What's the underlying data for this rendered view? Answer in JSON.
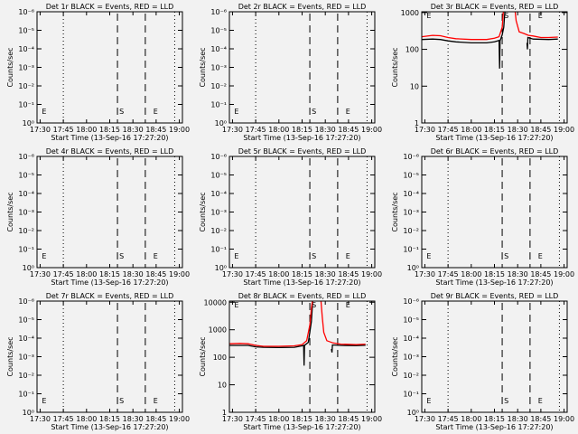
{
  "chart_data": {
    "type": "line",
    "xlabel": "Start Time (13-Sep-16 17:27:20)",
    "ylabel": "Counts/sec",
    "x_tick_labels": [
      "17:30",
      "17:45",
      "18:00",
      "18:15",
      "18:30",
      "18:45",
      "19:00"
    ],
    "x_unit": "minutes after 17:30",
    "xlim": [
      -2,
      92
    ],
    "dotted_lines": [
      15,
      87
    ],
    "dashed_lines": [
      50,
      68
    ],
    "markers": [
      {
        "label": "E",
        "x": 0
      },
      {
        "label": "S",
        "x": 50
      },
      {
        "label": "E",
        "x": 72
      }
    ],
    "empty_ytick_labels": [
      "10⁰",
      "10⁻¹",
      "10⁻²",
      "10⁻³",
      "10⁻⁴",
      "10⁻⁵",
      "10⁻⁶"
    ],
    "legend": "BLACK = Events, RED = LLD",
    "panels": [
      {
        "title": "Det 1r BLACK = Events, RED = LLD",
        "series": []
      },
      {
        "title": "Det 2r BLACK = Events, RED = LLD",
        "series": []
      },
      {
        "title": "Det 3r BLACK = Events, RED = LLD",
        "ylim": [
          1,
          1050
        ],
        "yticks": [
          1,
          10,
          100,
          1000
        ],
        "ytick_labels": [
          "1",
          "10",
          "100",
          "1000"
        ],
        "series": [
          {
            "name": "Events",
            "color": "#000000",
            "points": [
              [
                -2,
                185
              ],
              [
                5,
                190
              ],
              [
                10,
                185
              ],
              [
                15,
                170
              ],
              [
                20,
                160
              ],
              [
                30,
                150
              ],
              [
                40,
                150
              ],
              [
                45,
                160
              ],
              [
                48,
                175
              ],
              [
                48.3,
                30
              ],
              [
                48.6,
                170
              ],
              [
                50,
                250
              ],
              [
                51,
                400
              ],
              [
                52,
                1500
              ]
            ],
            "points2": [
              [
                66,
                150
              ],
              [
                66.3,
                100
              ],
              [
                66.6,
                210
              ],
              [
                70,
                190
              ],
              [
                80,
                185
              ],
              [
                86,
                190
              ]
            ]
          },
          {
            "name": "LLD",
            "color": "#ff0000",
            "points": [
              [
                -2,
                220
              ],
              [
                5,
                240
              ],
              [
                10,
                235
              ],
              [
                15,
                210
              ],
              [
                20,
                195
              ],
              [
                30,
                185
              ],
              [
                40,
                185
              ],
              [
                45,
                200
              ],
              [
                48,
                220
              ],
              [
                50,
                400
              ],
              [
                51,
                1500
              ]
            ],
            "points2": [
              [
                58,
                1500
              ],
              [
                59,
                600
              ],
              [
                61,
                300
              ],
              [
                64,
                270
              ],
              [
                67,
                240
              ],
              [
                70,
                230
              ],
              [
                75,
                210
              ],
              [
                80,
                210
              ],
              [
                86,
                215
              ]
            ]
          }
        ]
      },
      {
        "title": "Det 4r BLACK = Events, RED = LLD",
        "series": []
      },
      {
        "title": "Det 5r BLACK = Events, RED = LLD",
        "series": []
      },
      {
        "title": "Det 6r BLACK = Events, RED = LLD",
        "series": []
      },
      {
        "title": "Det 7r BLACK = Events, RED = LLD",
        "series": []
      },
      {
        "title": "Det 8r BLACK = Events, RED = LLD",
        "ylim": [
          1,
          11000
        ],
        "yticks": [
          1,
          10,
          100,
          1000,
          10000
        ],
        "ytick_labels": [
          "1",
          "10",
          "100",
          "1000",
          "10000"
        ],
        "series": [
          {
            "name": "Events",
            "color": "#000000",
            "points": [
              [
                -2,
                270
              ],
              [
                10,
                270
              ],
              [
                15,
                240
              ],
              [
                20,
                230
              ],
              [
                30,
                225
              ],
              [
                40,
                230
              ],
              [
                45,
                260
              ],
              [
                46,
                270
              ],
              [
                46.3,
                50
              ],
              [
                46.6,
                270
              ],
              [
                49,
                350
              ],
              [
                51,
                2000
              ],
              [
                52,
                15000
              ]
            ],
            "points2": [
              [
                64,
                200
              ],
              [
                64.3,
                150
              ],
              [
                64.6,
                280
              ],
              [
                70,
                270
              ],
              [
                80,
                265
              ],
              [
                86,
                275
              ]
            ]
          },
          {
            "name": "LLD",
            "color": "#ff0000",
            "points": [
              [
                -2,
                310
              ],
              [
                5,
                320
              ],
              [
                10,
                310
              ],
              [
                15,
                270
              ],
              [
                20,
                250
              ],
              [
                30,
                250
              ],
              [
                40,
                260
              ],
              [
                45,
                290
              ],
              [
                48,
                400
              ],
              [
                50,
                1500
              ],
              [
                51,
                6000
              ],
              [
                52,
                15000
              ]
            ],
            "points2": [
              [
                57,
                15000
              ],
              [
                58,
                3000
              ],
              [
                59,
                800
              ],
              [
                61,
                400
              ],
              [
                65,
                330
              ],
              [
                70,
                300
              ],
              [
                80,
                290
              ],
              [
                86,
                300
              ]
            ]
          }
        ]
      },
      {
        "title": "Det 9r BLACK = Events, RED = LLD",
        "series": []
      }
    ]
  }
}
